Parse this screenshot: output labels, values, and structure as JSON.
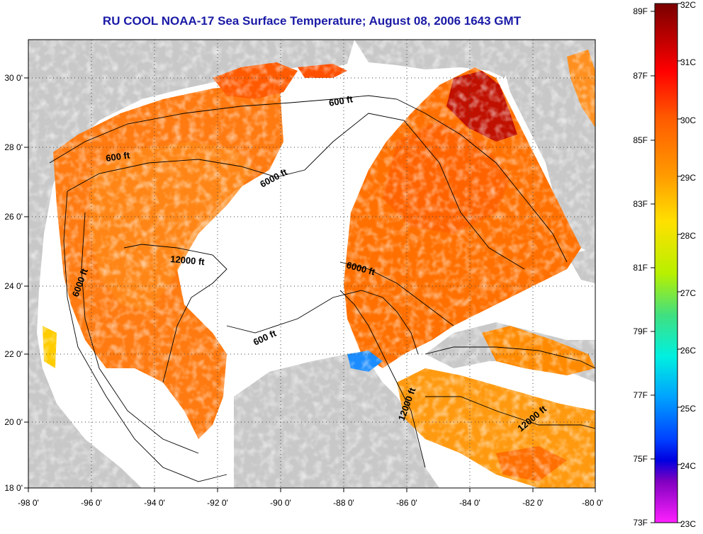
{
  "title": "RU COOL  NOAA-17  Sea Surface Temperature;  August 08, 2006 1643 GMT",
  "axes": {
    "lat_ticks": [
      "30 0'",
      "28 0'",
      "26 0'",
      "24 0'",
      "22 0'",
      "20 0'",
      "18 0'"
    ],
    "lon_ticks": [
      "-98 0'",
      "-96 0'",
      "-94 0'",
      "-92 0'",
      "-90 0'",
      "-88 0'",
      "-86 0'",
      "-84 0'",
      "-82 0'",
      "-80 0'"
    ]
  },
  "contour_labels": {
    "l1": "600 ft",
    "l2": "600 ft",
    "l3": "6000 ft",
    "l4": "12000 ft",
    "l5": "6000 ft",
    "l6": "6000 ft",
    "l7": "600 ft",
    "l8": "12000 ft",
    "l9": "12000 ft"
  },
  "colorbar": {
    "fahrenheit": [
      "89F",
      "87F",
      "85F",
      "83F",
      "81F",
      "79F",
      "77F",
      "75F",
      "73F"
    ],
    "celsius": [
      "32C",
      "31C",
      "30C",
      "29C",
      "28C",
      "27C",
      "26C",
      "25C",
      "24C",
      "23C"
    ]
  },
  "colors": {
    "land": "#c8c8c8",
    "no_data": "#ffffff",
    "title": "#1a1aa6",
    "sst_warm": "#ff6a00",
    "sst_hot": "#a00000",
    "sst_cool": "#ffcc00"
  }
}
